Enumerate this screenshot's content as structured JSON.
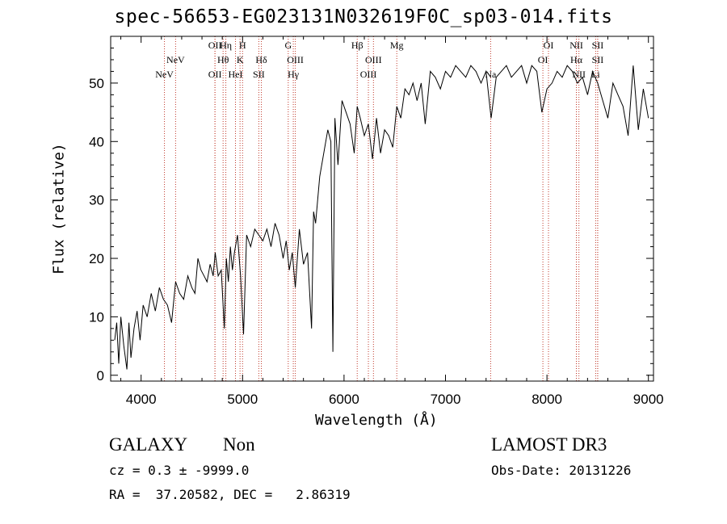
{
  "chart_data": {
    "type": "line",
    "title": "spec-56653-EG023131N032619F0C_sp03-014.fits",
    "xlabel": "Wavelength (Å)",
    "ylabel": "Flux (relative)",
    "xlim": [
      3700,
      9050
    ],
    "ylim": [
      -1,
      58
    ],
    "xticks": [
      4000,
      5000,
      6000,
      7000,
      8000,
      9000
    ],
    "yticks": [
      0,
      10,
      20,
      30,
      40,
      50
    ],
    "series": [
      {
        "name": "flux",
        "x": [
          3740,
          3760,
          3780,
          3800,
          3830,
          3860,
          3880,
          3900,
          3930,
          3960,
          3990,
          4020,
          4060,
          4100,
          4140,
          4180,
          4220,
          4260,
          4300,
          4340,
          4380,
          4420,
          4460,
          4500,
          4530,
          4560,
          4590,
          4620,
          4650,
          4680,
          4710,
          4730,
          4760,
          4790,
          4820,
          4840,
          4860,
          4880,
          4900,
          4920,
          4950,
          4980,
          5010,
          5040,
          5080,
          5120,
          5160,
          5200,
          5240,
          5280,
          5320,
          5360,
          5400,
          5430,
          5460,
          5490,
          5520,
          5560,
          5600,
          5640,
          5680,
          5700,
          5720,
          5760,
          5800,
          5840,
          5870,
          5890,
          5910,
          5940,
          5980,
          6020,
          6060,
          6100,
          6130,
          6160,
          6200,
          6240,
          6280,
          6320,
          6360,
          6400,
          6440,
          6480,
          6520,
          6560,
          6600,
          6640,
          6680,
          6720,
          6760,
          6800,
          6850,
          6900,
          6950,
          7000,
          7050,
          7100,
          7150,
          7200,
          7250,
          7300,
          7350,
          7400,
          7450,
          7500,
          7550,
          7600,
          7650,
          7700,
          7750,
          7800,
          7850,
          7900,
          7950,
          8000,
          8050,
          8100,
          8150,
          8200,
          8250,
          8300,
          8350,
          8400,
          8450,
          8500,
          8550,
          8600,
          8650,
          8700,
          8750,
          8800,
          8850,
          8900,
          8950,
          9000
        ],
        "y": [
          6,
          9,
          2,
          10,
          5,
          1,
          9,
          3,
          8,
          11,
          6,
          12,
          10,
          14,
          11,
          15,
          13,
          12,
          9,
          16,
          14,
          13,
          17,
          15,
          14,
          20,
          18,
          17,
          16,
          19,
          17,
          21,
          17,
          18,
          8,
          20,
          16,
          22,
          18,
          21,
          24,
          17,
          7,
          24,
          22,
          25,
          24,
          23,
          25,
          22,
          26,
          24,
          20,
          23,
          18,
          21,
          15,
          25,
          19,
          21,
          8,
          28,
          26,
          34,
          38,
          42,
          40,
          4,
          44,
          36,
          47,
          45,
          43,
          38,
          46,
          44,
          41,
          43,
          37,
          44,
          38,
          42,
          41,
          39,
          46,
          44,
          49,
          48,
          50,
          47,
          50,
          43,
          52,
          51,
          49,
          52,
          51,
          53,
          52,
          51,
          53,
          52,
          50,
          52,
          44,
          51,
          52,
          53,
          51,
          52,
          53,
          50,
          53,
          52,
          45,
          49,
          50,
          52,
          51,
          53,
          52,
          50,
          51,
          48,
          52,
          50,
          47,
          44,
          50,
          48,
          46,
          41,
          53,
          42,
          49,
          44
        ]
      }
    ],
    "lines": [
      {
        "label": "NeV",
        "wl": 4230,
        "row": 2
      },
      {
        "label": "NeV",
        "wl": 4340,
        "row": 1
      },
      {
        "label": "OII",
        "wl": 4728,
        "row": 0
      },
      {
        "label": "OII",
        "wl": 4728,
        "row": 2
      },
      {
        "label": "Hη",
        "wl": 4835,
        "row": 0
      },
      {
        "label": "Hθ",
        "wl": 4808,
        "row": 1
      },
      {
        "label": "HeI",
        "wl": 4930,
        "row": 2
      },
      {
        "label": "H",
        "wl": 5000,
        "row": 0
      },
      {
        "label": "K",
        "wl": 4975,
        "row": 1
      },
      {
        "label": "Hδ",
        "wl": 5185,
        "row": 1
      },
      {
        "label": "SII",
        "wl": 5160,
        "row": 2
      },
      {
        "label": "G",
        "wl": 5450,
        "row": 0
      },
      {
        "label": "OIII",
        "wl": 5520,
        "row": 1
      },
      {
        "label": "Hγ",
        "wl": 5500,
        "row": 2
      },
      {
        "label": "Hβ",
        "wl": 6130,
        "row": 0
      },
      {
        "label": "OIII",
        "wl": 6290,
        "row": 1
      },
      {
        "label": "OIII",
        "wl": 6240,
        "row": 2
      },
      {
        "label": "Mg",
        "wl": 6520,
        "row": 0
      },
      {
        "label": "Na",
        "wl": 7445,
        "row": 2
      },
      {
        "label": "OI",
        "wl": 8015,
        "row": 0
      },
      {
        "label": "OI",
        "wl": 7960,
        "row": 1
      },
      {
        "label": "NII",
        "wl": 8290,
        "row": 0
      },
      {
        "label": "Hα",
        "wl": 8290,
        "row": 1
      },
      {
        "label": "NII",
        "wl": 8315,
        "row": 2
      },
      {
        "label": "SII",
        "wl": 8500,
        "row": 0
      },
      {
        "label": "SII",
        "wl": 8500,
        "row": 1
      },
      {
        "label": "Li",
        "wl": 8480,
        "row": 2
      }
    ]
  },
  "info": {
    "class_label": "GALAXY",
    "subclass_label": "Non",
    "survey": "LAMOST DR3",
    "cz": "cz = 0.3 ± -9999.0",
    "obs_date": "Obs-Date: 20131226",
    "radec": "RA =  37.20582, DEC =   2.86319"
  }
}
